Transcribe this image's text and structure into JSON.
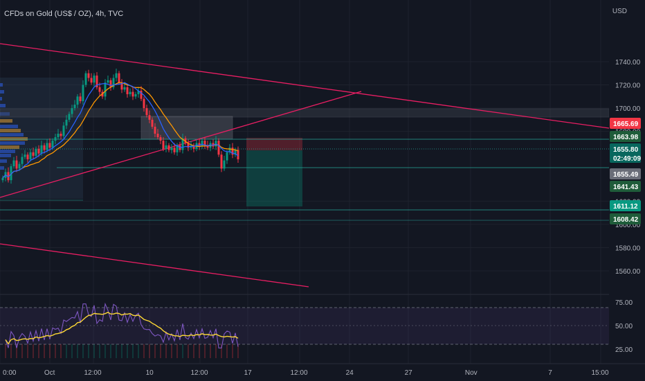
{
  "header": {
    "title": "CFDs on Gold (US$ / OZ), 4h, TVC",
    "currency": "USD"
  },
  "price_axis": {
    "ticks": [
      "1740.00",
      "1720.00",
      "1700.00",
      "1680.00",
      "1620.00",
      "1600.00",
      "1580.00",
      "1560.00"
    ]
  },
  "price_tags": [
    {
      "label": "1665.69",
      "color": "#f23645",
      "value": 1665.69
    },
    {
      "label": "1663.98",
      "color": "#1f5c3a",
      "value": 1663.98
    },
    {
      "label": "1655.80",
      "sublabel": "02:49:09",
      "color": "#08675e",
      "value": 1655.8
    },
    {
      "label": "1655.49",
      "color": "#6a6d78",
      "value": 1655.49
    },
    {
      "label": "1641.43",
      "color": "#1f5c3a",
      "value": 1641.43
    },
    {
      "label": "1611.12",
      "color": "#089981",
      "value": 1611.12
    },
    {
      "label": "1608.42",
      "color": "#1f5c3a",
      "value": 1608.42
    }
  ],
  "time_axis": {
    "labels": [
      "0:00",
      "Oct",
      "12:00",
      "10",
      "12:00",
      "17",
      "12:00",
      "24",
      "27",
      "Nov",
      "7",
      "15:00"
    ]
  },
  "rsi_axis": {
    "ticks": [
      "75.00",
      "50.00",
      "25.00"
    ]
  },
  "colors": {
    "background": "#131722",
    "up_candle": "#089981",
    "down_candle": "#f23645",
    "trendline": "#e91e63",
    "ma_fast": "#2962ff",
    "ma_slow": "#ff9800",
    "rsi_line": "#7e57c2",
    "rsi_ma": "#fdd835"
  }
}
